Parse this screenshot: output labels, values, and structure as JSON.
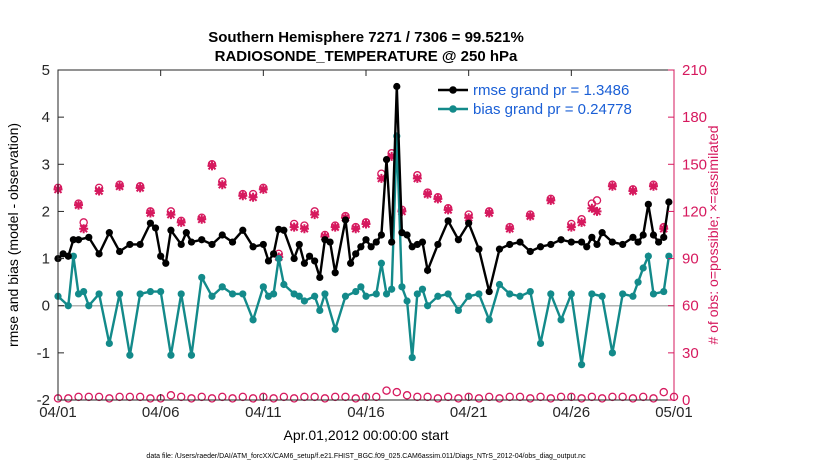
{
  "chart_data": {
    "type": "line",
    "title": "Southern Hemisphere 7271 / 7306 = 99.521%",
    "subtitle": "RADIOSONDE_TEMPERATURE @ 250 hPa",
    "xlabel": "Apr.01,2012 00:00:00 start",
    "ylabel": "rmse and bias (model - observation)",
    "ylabel_right": "# of obs: o=possible; ×=assimilated",
    "footnote": "data file: /Users/raeder/DAI/ATM_forcXX/CAM6_setup/f.e21.FHIST_BGC.f09_025.CAM6assim.011/Diags_NTrS_2012-04/obs_diag_output.nc",
    "xlim": [
      0,
      30
    ],
    "ylim": [
      -2,
      5
    ],
    "ylim_right": [
      0,
      210
    ],
    "x_ticks": [
      0,
      5,
      10,
      15,
      20,
      25,
      30
    ],
    "x_tick_labels": [
      "04/01",
      "04/06",
      "04/11",
      "04/16",
      "04/21",
      "04/26",
      "05/01"
    ],
    "y_ticks": [
      -2,
      -1,
      0,
      1,
      2,
      3,
      4,
      5
    ],
    "y_tick_labels": [
      "-2",
      "-1",
      "0",
      "1",
      "2",
      "3",
      "4",
      "5"
    ],
    "y_ticks_right": [
      0,
      30,
      60,
      90,
      120,
      150,
      180,
      210
    ],
    "y_tick_labels_right": [
      "0",
      "30",
      "60",
      "90",
      "120",
      "150",
      "180",
      "210"
    ],
    "grid": false,
    "legend_position": "top-right",
    "colors": {
      "rmse": "#000000",
      "bias": "#138a8a",
      "obs": "#d6195e",
      "zero_line": "#b3b3b3",
      "legend_text": "#1a5fd6"
    },
    "series": [
      {
        "name": "rmse grand pr = 1.3486",
        "axis": "left",
        "x": [
          0,
          0.25,
          0.5,
          0.75,
          1,
          1.5,
          2,
          2.5,
          3,
          3.5,
          4,
          4.5,
          4.75,
          5,
          5.25,
          5.5,
          6,
          6.25,
          6.5,
          7,
          7.5,
          8,
          8.5,
          9,
          9.5,
          10,
          10.25,
          10.5,
          10.75,
          11,
          11.5,
          11.75,
          12,
          12.25,
          12.5,
          12.75,
          13,
          13.25,
          13.5,
          14,
          14.25,
          14.5,
          14.75,
          15,
          15.25,
          15.5,
          15.75,
          16,
          16.25,
          16.5,
          16.75,
          17,
          17.25,
          17.5,
          17.75,
          18,
          18.5,
          19,
          19.5,
          20,
          20.5,
          21,
          21.5,
          22,
          22.5,
          23,
          23.5,
          24,
          24.5,
          25,
          25.5,
          25.75,
          26,
          26.25,
          26.5,
          27,
          27.5,
          28,
          28.25,
          28.5,
          28.75,
          29,
          29.25,
          29.5,
          29.75
        ],
        "y": [
          1.0,
          1.1,
          1.05,
          1.4,
          1.4,
          1.45,
          1.1,
          1.55,
          1.15,
          1.3,
          1.3,
          1.75,
          1.65,
          1.05,
          0.9,
          1.6,
          1.3,
          1.55,
          1.35,
          1.4,
          1.3,
          1.5,
          1.35,
          1.6,
          1.25,
          1.3,
          0.95,
          1.1,
          1.62,
          1.6,
          1.0,
          1.3,
          0.9,
          1.05,
          0.95,
          0.6,
          1.4,
          1.35,
          0.7,
          1.82,
          0.9,
          1.1,
          1.25,
          1.4,
          1.25,
          1.35,
          1.5,
          3.1,
          1.35,
          4.65,
          1.55,
          1.5,
          1.25,
          1.3,
          1.35,
          0.75,
          1.3,
          1.8,
          1.4,
          1.75,
          1.2,
          0.3,
          1.2,
          1.3,
          1.35,
          1.15,
          1.25,
          1.3,
          1.4,
          1.35,
          1.35,
          1.25,
          1.45,
          1.3,
          1.55,
          1.35,
          1.3,
          1.45,
          1.35,
          1.5,
          2.15,
          1.5,
          1.35,
          1.45,
          2.2
        ]
      },
      {
        "name": "bias grand pr = 0.24778",
        "axis": "left",
        "x": [
          0,
          0.5,
          0.75,
          1,
          1.25,
          1.5,
          2,
          2.5,
          3,
          3.5,
          4,
          4.5,
          5,
          5.5,
          6,
          6.5,
          7,
          7.5,
          8,
          8.5,
          9,
          9.5,
          10,
          10.25,
          10.5,
          10.75,
          11,
          11.5,
          11.75,
          12,
          12.5,
          12.75,
          13,
          13.5,
          14,
          14.5,
          14.75,
          15,
          15.5,
          15.75,
          16,
          16.25,
          16.5,
          16.75,
          17,
          17.25,
          17.5,
          17.75,
          18,
          18.5,
          19,
          19.5,
          20,
          20.5,
          21,
          21.5,
          22,
          22.5,
          23,
          23.5,
          24,
          24.5,
          25,
          25.5,
          26,
          26.5,
          27,
          27.5,
          28,
          28.25,
          28.5,
          28.75,
          29,
          29.5,
          29.75
        ],
        "y": [
          0.2,
          0.0,
          1.05,
          0.25,
          0.3,
          0.0,
          0.25,
          -0.8,
          0.25,
          -1.05,
          0.25,
          0.3,
          0.3,
          -1.05,
          0.25,
          -1.05,
          0.6,
          0.2,
          0.4,
          0.25,
          0.25,
          -0.3,
          0.4,
          0.2,
          0.25,
          1.0,
          0.45,
          0.25,
          0.2,
          0.1,
          0.2,
          -0.1,
          0.25,
          -0.5,
          0.2,
          0.3,
          0.4,
          0.2,
          0.25,
          0.9,
          0.25,
          0.35,
          3.6,
          0.4,
          0.1,
          -1.1,
          0.25,
          0.35,
          0.0,
          0.2,
          0.25,
          -0.1,
          0.2,
          0.25,
          -0.3,
          0.45,
          0.25,
          0.2,
          0.3,
          -0.8,
          0.25,
          -0.3,
          0.25,
          -1.25,
          0.25,
          0.2,
          -1.0,
          0.25,
          0.2,
          0.5,
          0.8,
          1.05,
          0.25,
          0.3,
          1.05
        ]
      },
      {
        "name": "obs possible",
        "axis": "right",
        "x": [
          0,
          1,
          1.25,
          2,
          3,
          4,
          4.5,
          5.5,
          6,
          7,
          7.5,
          8,
          9,
          9.5,
          10,
          10.75,
          11.5,
          12,
          12.5,
          13,
          13.5,
          14,
          14.5,
          15,
          15.75,
          16.25,
          16.75,
          17.5,
          18,
          18.5,
          19,
          20,
          21,
          22,
          23,
          24,
          25,
          25.5,
          26,
          26.25,
          27,
          28,
          29,
          29.5
        ],
        "y": [
          135,
          125,
          113,
          135,
          137,
          136,
          120,
          120,
          114,
          116,
          150,
          139,
          131,
          131,
          135,
          93,
          112,
          111,
          120,
          105,
          111,
          117,
          110,
          113,
          144,
          157,
          121,
          143,
          132,
          129,
          122,
          118,
          120,
          110,
          118,
          128,
          112,
          115,
          125,
          127,
          137,
          134,
          137,
          110
        ]
      },
      {
        "name": "obs assimilated",
        "axis": "right",
        "x": [
          0,
          1,
          1.25,
          2,
          3,
          4,
          4.5,
          5.5,
          6,
          7,
          7.5,
          8,
          9,
          9.5,
          10,
          10.75,
          11.5,
          12,
          12.5,
          13,
          13.5,
          14,
          14.5,
          15,
          15.75,
          16.25,
          16.75,
          17.5,
          18,
          18.5,
          19,
          20,
          21,
          22,
          23,
          24,
          25,
          25.5,
          26,
          26.25,
          27,
          28,
          29,
          29.5
        ],
        "y": [
          134,
          124,
          109,
          133,
          136,
          135,
          119,
          118,
          113,
          115,
          149,
          137,
          130,
          129,
          134,
          91,
          110,
          109,
          118,
          104,
          110,
          116,
          109,
          112,
          141,
          155,
          120,
          141,
          131,
          128,
          121,
          116,
          119,
          109,
          117,
          127,
          110,
          113,
          122,
          120,
          136,
          133,
          136,
          109
        ]
      },
      {
        "name": "obs possible baseline",
        "axis": "right",
        "x": [
          0,
          0.5,
          1,
          1.5,
          2,
          2.5,
          3,
          3.5,
          4,
          4.5,
          5,
          5.5,
          6,
          6.5,
          7,
          7.5,
          8,
          8.5,
          9,
          9.5,
          10,
          10.5,
          11,
          11.5,
          12,
          12.5,
          13,
          13.5,
          14,
          14.5,
          15,
          15.5,
          16,
          16.5,
          17,
          17.5,
          18,
          18.5,
          19,
          19.5,
          20,
          20.5,
          21,
          21.5,
          22,
          22.5,
          23,
          23.5,
          24,
          24.5,
          25,
          25.5,
          26,
          26.5,
          27,
          27.5,
          28,
          28.5,
          29,
          29.5,
          30
        ],
        "y": [
          1,
          1,
          2,
          2,
          2,
          1,
          2,
          2,
          2,
          1,
          1,
          3,
          2,
          1,
          2,
          1,
          2,
          1,
          2,
          1,
          2,
          1,
          2,
          1,
          2,
          2,
          1,
          2,
          2,
          1,
          2,
          2,
          6,
          5,
          3,
          2,
          2,
          1,
          2,
          1,
          2,
          1,
          2,
          1,
          2,
          2,
          1,
          2,
          1,
          2,
          2,
          1,
          2,
          1,
          2,
          2,
          1,
          2,
          1,
          5,
          2
        ]
      }
    ]
  }
}
